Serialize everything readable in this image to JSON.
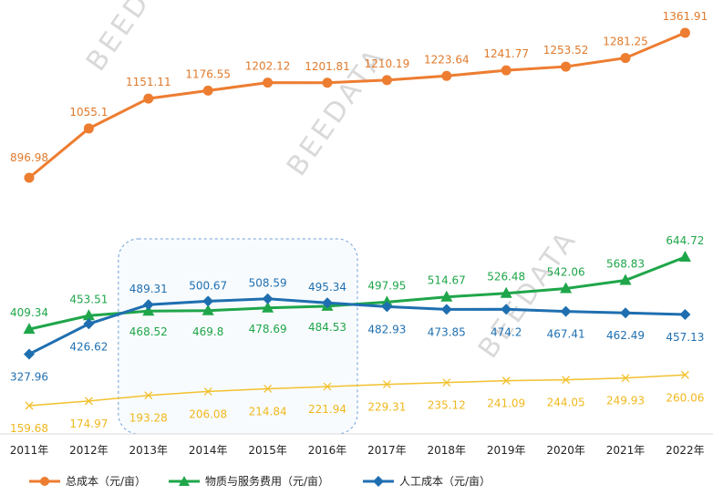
{
  "watermark": "BEEDATA",
  "chart_data": {
    "type": "line",
    "categories": [
      "2011年",
      "2012年",
      "2013年",
      "2014年",
      "2015年",
      "2016年",
      "2017年",
      "2018年",
      "2019年",
      "2020年",
      "2021年",
      "2022年"
    ],
    "series": [
      {
        "name": "总成本（元/亩）",
        "color": "#ED7D31",
        "marker": "circle",
        "values": [
          896.98,
          1055.1,
          1151.11,
          1176.55,
          1202.12,
          1201.81,
          1210.19,
          1223.64,
          1241.77,
          1253.52,
          1281.25,
          1361.91
        ],
        "labels": [
          "896.98",
          "1055.1",
          "1151.11",
          "1176.55",
          "1202.12",
          "1201.81",
          "1210.19",
          "1223.64",
          "1241.77",
          "1253.52",
          "1281.25",
          "1361.91"
        ]
      },
      {
        "name": "物质与服务费用（元/亩）",
        "color": "#1FA64A",
        "marker": "triangle",
        "values": [
          409.34,
          453.51,
          468.52,
          469.8,
          478.69,
          484.53,
          497.95,
          514.67,
          526.48,
          542.06,
          568.83,
          644.72
        ],
        "labels": [
          "409.34",
          "453.51",
          "468.52",
          "469.8",
          "478.69",
          "484.53",
          "497.95",
          "514.67",
          "526.48",
          "542.06",
          "568.83",
          "644.72"
        ]
      },
      {
        "name": "人工成本（元/亩）",
        "color": "#1F6FB0",
        "marker": "diamond",
        "values": [
          327.96,
          426.62,
          489.31,
          500.67,
          508.59,
          495.34,
          482.93,
          473.85,
          474.2,
          467.41,
          462.49,
          457.13
        ],
        "labels": [
          "327.96",
          "426.62",
          "489.31",
          "500.67",
          "508.59",
          "495.34",
          "482.93",
          "473.85",
          "474.2",
          "467.41",
          "462.49",
          "457.13"
        ]
      },
      {
        "name": "",
        "color": "#F2C12E",
        "marker": "x",
        "values": [
          159.68,
          174.97,
          193.28,
          206.08,
          214.84,
          221.94,
          229.31,
          235.12,
          241.09,
          244.05,
          249.93,
          260.06
        ],
        "labels": [
          "159.68",
          "174.97",
          "193.28",
          "206.08",
          "214.84",
          "221.94",
          "229.31",
          "235.12",
          "241.09",
          "244.05",
          "249.93",
          "260.06"
        ]
      }
    ],
    "highlight_range": [
      "2013年",
      "2016年"
    ],
    "grid": false,
    "legend_position": "bottom-left"
  }
}
